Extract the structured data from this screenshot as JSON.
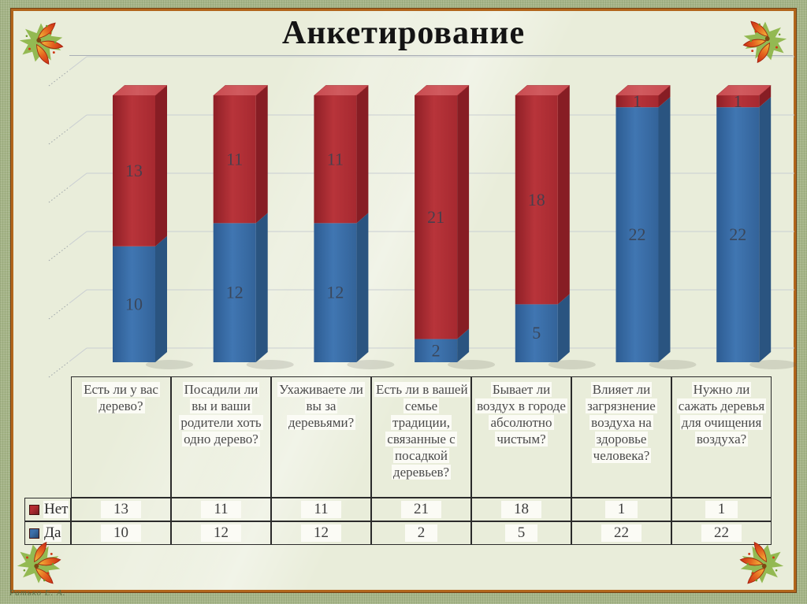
{
  "slide": {
    "title": "Анкетирование",
    "signature": "Ратько Е. А."
  },
  "chart_data": {
    "type": "bar",
    "subtype": "stacked-3d-column",
    "title": "Анкетирование",
    "categories": [
      "Есть ли у вас дерево?",
      "Посадили ли вы и ваши родители хоть одно дерево?",
      "Ухаживаете ли вы за деревьями?",
      "Есть ли в вашей семье традиции, связанные с посадкой деревьев?",
      "Бывает ли воздух в городе абсолютно чистым?",
      "Влияет ли загрязнение воздуха на здоровье человека?",
      "Нужно ли сажать деревья для очищения воздуха?"
    ],
    "series": [
      {
        "name": "Нет",
        "color": "#b42b31",
        "stack_order": "top",
        "values": [
          13,
          11,
          11,
          21,
          18,
          1,
          1
        ]
      },
      {
        "name": "Да",
        "color": "#3b70ab",
        "stack_order": "bottom",
        "values": [
          10,
          12,
          12,
          2,
          5,
          22,
          22
        ]
      }
    ],
    "ylim": [
      0,
      25
    ],
    "gridline_step": 5,
    "grid": true,
    "data_labels": true,
    "legend_position": "table-left",
    "table_row_order": [
      "Нет",
      "Да"
    ]
  },
  "colors": {
    "background": "#e9edda",
    "border_green": "#a6b588",
    "frame": "#b2661c",
    "red_front": "#b8343a",
    "red_front_edge": "#8e1f26",
    "red_side": "#871d24",
    "red_top": "#c84b50",
    "blue_front": "#4076b2",
    "blue_front_edge": "#2d5c92",
    "blue_side": "#2a5480",
    "blue_top": "#5587c0",
    "gridline": "#c9ced2",
    "value_label": "#3a4150",
    "table_border": "#2b2b2b"
  }
}
